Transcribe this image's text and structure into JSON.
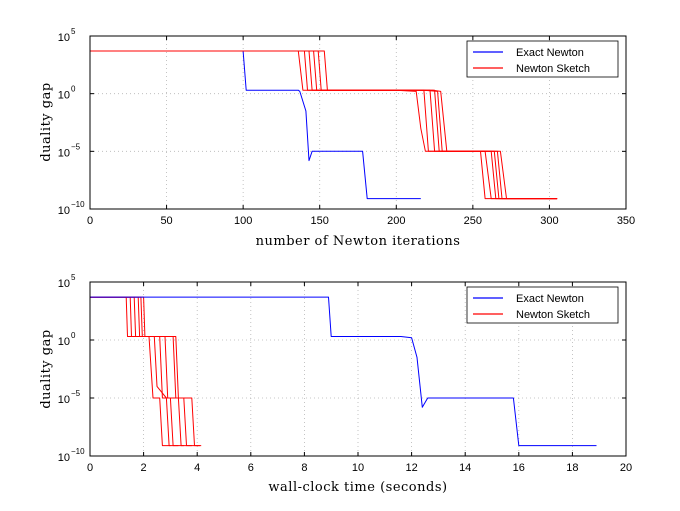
{
  "chart_data": [
    {
      "type": "line",
      "xlabel": "number of Newton iterations",
      "ylabel": "duality gap",
      "xlim": [
        0,
        350
      ],
      "ylim_log10": [
        -10,
        5
      ],
      "xticks": [
        0,
        50,
        100,
        150,
        200,
        250,
        300,
        350
      ],
      "xtick_labels": [
        "0",
        "50",
        "100",
        "150",
        "200",
        "250",
        "300",
        "350"
      ],
      "yticks_log10": [
        -10,
        -5,
        0,
        5
      ],
      "ytick_bases": [
        "10",
        "10",
        "10",
        "10"
      ],
      "ytick_exps": [
        "−10",
        "−5",
        "0",
        "5"
      ],
      "legend": {
        "position": "top-right",
        "entries": [
          "Exact Newton",
          "Newton Sketch"
        ]
      },
      "series": [
        {
          "name": "Exact Newton",
          "color": "#0000ff",
          "traces": [
            [
              [
                0,
                3.7
              ],
              [
                100,
                3.7
              ],
              [
                102,
                0.3
              ],
              [
                136,
                0.3
              ],
              [
                137,
                0.2
              ],
              [
                141,
                -1.5
              ],
              [
                143,
                -5.8
              ],
              [
                145,
                -5
              ],
              [
                178,
                -5
              ],
              [
                181,
                -9.1
              ],
              [
                216,
                -9.1
              ]
            ]
          ]
        },
        {
          "name": "Newton Sketch",
          "color": "#ff0000",
          "traces": [
            [
              [
                0,
                3.7
              ],
              [
                136,
                3.7
              ],
              [
                139,
                0.3
              ],
              [
                200,
                0.3
              ],
              [
                213,
                0.2
              ],
              [
                216,
                -3
              ],
              [
                219,
                -5
              ],
              [
                255,
                -5
              ],
              [
                258,
                -9.1
              ],
              [
                305,
                -9.1
              ]
            ],
            [
              [
                0,
                3.7
              ],
              [
                140,
                3.7
              ],
              [
                142,
                0.3
              ],
              [
                205,
                0.3
              ],
              [
                218,
                0.3
              ],
              [
                221,
                -5
              ],
              [
                258,
                -5
              ],
              [
                262,
                -9.1
              ],
              [
                305,
                -9.1
              ]
            ],
            [
              [
                0,
                3.7
              ],
              [
                143,
                3.7
              ],
              [
                145,
                0.3
              ],
              [
                210,
                0.3
              ],
              [
                222,
                0.3
              ],
              [
                225,
                -5
              ],
              [
                262,
                -5
              ],
              [
                265,
                -9.1
              ],
              [
                305,
                -9.1
              ]
            ],
            [
              [
                0,
                3.7
              ],
              [
                146,
                3.7
              ],
              [
                148,
                0.3
              ],
              [
                215,
                0.3
              ],
              [
                225,
                0.3
              ],
              [
                228,
                -5
              ],
              [
                264,
                -5
              ],
              [
                267,
                -9.1
              ],
              [
                305,
                -9.1
              ]
            ],
            [
              [
                0,
                3.7
              ],
              [
                149,
                3.7
              ],
              [
                151,
                0.3
              ],
              [
                218,
                0.3
              ],
              [
                227,
                0.2
              ],
              [
                230,
                -5
              ],
              [
                266,
                -5
              ],
              [
                269,
                -9.1
              ],
              [
                305,
                -9.1
              ]
            ],
            [
              [
                0,
                3.7
              ],
              [
                153,
                3.7
              ],
              [
                155,
                0.3
              ],
              [
                224,
                0.3
              ],
              [
                229,
                0.2
              ],
              [
                233,
                -5
              ],
              [
                268,
                -5
              ],
              [
                272,
                -9.1
              ],
              [
                305,
                -9.1
              ]
            ]
          ]
        }
      ]
    },
    {
      "type": "line",
      "xlabel": "wall-clock time (seconds)",
      "ylabel": "duality gap",
      "xlim": [
        0,
        20
      ],
      "ylim_log10": [
        -10,
        5
      ],
      "xticks": [
        0,
        2,
        4,
        6,
        8,
        10,
        12,
        14,
        16,
        18,
        20
      ],
      "xtick_labels": [
        "0",
        "2",
        "4",
        "6",
        "8",
        "10",
        "12",
        "14",
        "16",
        "18",
        "20"
      ],
      "yticks_log10": [
        -10,
        -5,
        0,
        5
      ],
      "ytick_bases": [
        "10",
        "10",
        "10",
        "10"
      ],
      "ytick_exps": [
        "−10",
        "−5",
        "0",
        "5"
      ],
      "legend": {
        "position": "top-right",
        "entries": [
          "Exact Newton",
          "Newton Sketch"
        ]
      },
      "series": [
        {
          "name": "Exact Newton",
          "color": "#0000ff",
          "traces": [
            [
              [
                0,
                3.7
              ],
              [
                8.9,
                3.7
              ],
              [
                9.0,
                0.3
              ],
              [
                11.6,
                0.3
              ],
              [
                12.0,
                0.2
              ],
              [
                12.2,
                -1.5
              ],
              [
                12.4,
                -5.8
              ],
              [
                12.6,
                -5
              ],
              [
                15.8,
                -5
              ],
              [
                16.0,
                -9.1
              ],
              [
                18.9,
                -9.1
              ]
            ]
          ]
        },
        {
          "name": "Newton Sketch",
          "color": "#ff0000",
          "traces": [
            [
              [
                0,
                3.7
              ],
              [
                1.35,
                3.7
              ],
              [
                1.4,
                0.3
              ],
              [
                2.2,
                0.3
              ],
              [
                2.35,
                -5
              ],
              [
                2.6,
                -5
              ],
              [
                2.7,
                -9.1
              ],
              [
                3.0,
                -9.1
              ]
            ],
            [
              [
                0,
                3.7
              ],
              [
                1.5,
                3.7
              ],
              [
                1.55,
                0.3
              ],
              [
                2.4,
                0.3
              ],
              [
                2.5,
                -4
              ],
              [
                2.85,
                -5
              ],
              [
                2.95,
                -9.1
              ],
              [
                3.3,
                -9.1
              ]
            ],
            [
              [
                0,
                3.7
              ],
              [
                1.65,
                3.7
              ],
              [
                1.7,
                0.3
              ],
              [
                2.6,
                0.3
              ],
              [
                2.7,
                -5
              ],
              [
                3.0,
                -5
              ],
              [
                3.1,
                -9.1
              ],
              [
                3.5,
                -9.1
              ]
            ],
            [
              [
                0,
                3.7
              ],
              [
                1.8,
                3.7
              ],
              [
                1.85,
                0.3
              ],
              [
                2.8,
                0.3
              ],
              [
                2.9,
                -5
              ],
              [
                3.3,
                -5
              ],
              [
                3.4,
                -9.1
              ],
              [
                3.8,
                -9.1
              ]
            ],
            [
              [
                0,
                3.7
              ],
              [
                1.9,
                3.7
              ],
              [
                1.95,
                0.3
              ],
              [
                3.1,
                0.3
              ],
              [
                3.2,
                -5
              ],
              [
                3.5,
                -5
              ],
              [
                3.6,
                -9.1
              ],
              [
                4.1,
                -9.1
              ]
            ],
            [
              [
                0,
                3.7
              ],
              [
                2.0,
                3.7
              ],
              [
                2.05,
                0.3
              ],
              [
                3.2,
                0.3
              ],
              [
                3.3,
                -5
              ],
              [
                3.8,
                -5
              ],
              [
                3.9,
                -9.1
              ],
              [
                4.15,
                -9.1
              ]
            ]
          ]
        }
      ]
    }
  ]
}
